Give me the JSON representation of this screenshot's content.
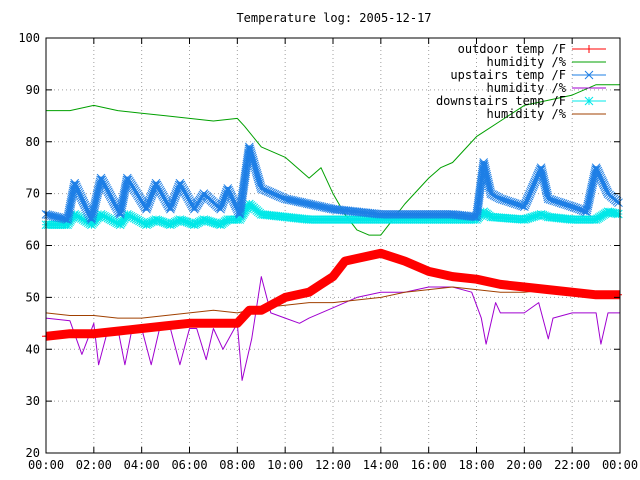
{
  "chart_data": {
    "type": "line",
    "title": "Temperature log: 2005-12-17",
    "xlabel": "",
    "ylabel": "",
    "xlim": [
      0,
      24
    ],
    "ylim": [
      20,
      100
    ],
    "grid": true,
    "legend_position": "top-right",
    "x_ticks": [
      "00:00",
      "02:00",
      "04:00",
      "06:00",
      "08:00",
      "10:00",
      "12:00",
      "14:00",
      "16:00",
      "18:00",
      "20:00",
      "22:00",
      "00:00"
    ],
    "y_ticks": [
      "20",
      "30",
      "40",
      "50",
      "60",
      "70",
      "80",
      "90",
      "100"
    ],
    "series": [
      {
        "name": "outdoor temp /F",
        "color": "#ff0000",
        "marker": "plus",
        "x": [
          0,
          1,
          2,
          3,
          4,
          5,
          6,
          7,
          8,
          8.5,
          9,
          10,
          11,
          11.5,
          12,
          12.5,
          13,
          14,
          15,
          16,
          17,
          18,
          19,
          20,
          21,
          22,
          23,
          24
        ],
        "y": [
          42.5,
          43,
          43,
          43.5,
          44,
          44.5,
          45,
          45,
          45,
          47.5,
          47.5,
          50,
          51,
          52.5,
          54,
          57,
          57.5,
          58.5,
          57,
          55,
          54,
          53.5,
          52.5,
          52,
          51.5,
          51,
          50.5,
          50.5
        ]
      },
      {
        "name": "humidity /%",
        "color": "#00a000",
        "marker": "none",
        "x": [
          0,
          1,
          2,
          3,
          4,
          5,
          6,
          7,
          8,
          8.3,
          9,
          10,
          11,
          11.5,
          12,
          12.5,
          13,
          13.5,
          14,
          14.5,
          15,
          16,
          16.5,
          17,
          18,
          19,
          20,
          21,
          22,
          23,
          24
        ],
        "y": [
          86,
          86,
          87,
          86,
          85.5,
          85,
          84.5,
          84,
          84.5,
          83,
          79,
          77,
          73,
          75,
          70,
          66,
          63,
          62,
          62,
          65,
          68,
          73,
          75,
          76,
          81,
          84,
          87,
          88,
          89,
          91,
          91
        ]
      },
      {
        "name": "upstairs temp /F",
        "color": "#1e7fe6",
        "marker": "x",
        "x": [
          0,
          0.9,
          1.2,
          1.9,
          2.3,
          3.1,
          3.4,
          4.2,
          4.6,
          5.2,
          5.6,
          6.2,
          6.6,
          7.3,
          7.6,
          8.1,
          8.5,
          9,
          10,
          11,
          12,
          13,
          14,
          15,
          16,
          17,
          18,
          18.3,
          18.6,
          19,
          20,
          20.7,
          21,
          22,
          22.6,
          23,
          23.5,
          24
        ],
        "y": [
          66,
          65,
          72,
          65,
          73,
          66,
          73,
          67,
          72,
          67,
          72,
          67,
          70,
          67,
          71,
          66,
          79,
          71,
          69,
          68,
          67,
          66.5,
          66,
          66,
          66,
          66,
          65.5,
          76,
          70,
          69,
          67.5,
          75,
          69,
          67.5,
          66.5,
          75,
          70,
          68
        ]
      },
      {
        "name": "humidity /%",
        "color": "#a000d0",
        "marker": "none",
        "x": [
          0,
          1,
          1.5,
          2,
          2.2,
          2.6,
          3,
          3.3,
          3.6,
          4,
          4.4,
          4.8,
          5.2,
          5.6,
          6,
          6.3,
          6.7,
          7,
          7.4,
          8,
          8.2,
          8.6,
          9,
          9.4,
          10,
          10.6,
          11,
          12,
          13,
          14,
          15,
          16,
          17,
          17.8,
          18.2,
          18.4,
          18.8,
          19,
          20,
          20.6,
          21,
          21.2,
          22,
          23,
          23.2,
          23.5,
          24
        ],
        "y": [
          46,
          45.5,
          39,
          45,
          37,
          44,
          44,
          37,
          44,
          44,
          37,
          45,
          44,
          37,
          44,
          44,
          38,
          44,
          40,
          45,
          34,
          42,
          54,
          47,
          46,
          45,
          46,
          48,
          50,
          51,
          51,
          52,
          52,
          51,
          46,
          41,
          49,
          47,
          47,
          49,
          42,
          46,
          47,
          47,
          41,
          47,
          47
        ]
      },
      {
        "name": "downstairs temp /F",
        "color": "#00e8e8",
        "marker": "star",
        "x": [
          0,
          0.9,
          1.2,
          1.9,
          2.3,
          3.1,
          3.4,
          4.2,
          4.6,
          5.2,
          5.6,
          6.2,
          6.6,
          7.3,
          7.6,
          8.1,
          8.5,
          9,
          10,
          11,
          12,
          14,
          16,
          18,
          18.3,
          18.6,
          20,
          20.7,
          21,
          22,
          23,
          23.5,
          24
        ],
        "y": [
          64,
          64,
          66,
          64,
          66,
          64,
          66,
          64,
          65,
          64,
          65,
          64,
          65,
          64,
          65,
          65,
          68,
          66,
          65.5,
          65,
          65,
          65,
          65,
          65,
          66.5,
          65.5,
          65,
          66,
          65.5,
          65,
          65,
          66.5,
          66
        ]
      },
      {
        "name": "humidity /%",
        "color": "#a04000",
        "marker": "none",
        "x": [
          0,
          1,
          2,
          3,
          4,
          5,
          6,
          7,
          8,
          9,
          10,
          11,
          12,
          13,
          14,
          15,
          16,
          17,
          18,
          19,
          20,
          21,
          22,
          23,
          24
        ],
        "y": [
          47,
          46.5,
          46.5,
          46,
          46,
          46.5,
          47,
          47.5,
          47,
          48,
          48.5,
          49,
          49,
          49.5,
          50,
          51,
          51.5,
          52,
          51.5,
          51,
          51,
          51.5,
          51,
          51,
          50.5
        ]
      }
    ]
  }
}
